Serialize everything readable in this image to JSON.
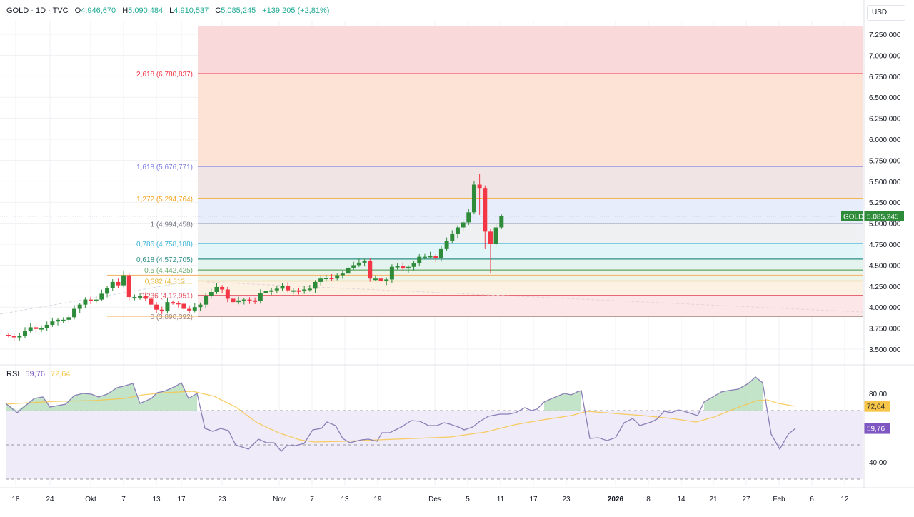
{
  "legend": {
    "symbol": "GOLD · 1D · TVC",
    "open_label": "O",
    "open": "4.946,670",
    "high_label": "H",
    "high": "5.090,484",
    "low_label": "L",
    "low": "4.910,537",
    "close_label": "C",
    "close": "5.085,245",
    "change": "+139,205 (+2,81%)"
  },
  "currency_button": "USD",
  "price_tag": {
    "symbol": "GOLD",
    "value": "5.085,245",
    "color": "#2e8b3a"
  },
  "rsi_legend": {
    "name": "RSI",
    "rsi_value": "59,76",
    "ma_value": "72,64"
  },
  "rsi_tags": {
    "ma": "72,64",
    "rsi": "59,76"
  },
  "colors": {
    "up": "#2e8b3a",
    "down": "#f23645",
    "rsi_line": "#7e57c2",
    "rsi_ma": "#f7c548",
    "fib_2618": "#f23645",
    "fib_1618": "#7b7fe0",
    "fib_1272": "#f5a623",
    "fib_1": "#787b86",
    "fib_0786": "#3cb4d8",
    "fib_0618": "#2f8f87",
    "fib_05": "#6fae73",
    "fib_0382": "#e6b52a",
    "fib_0236": "#e25563",
    "fib_0": "#a08070"
  },
  "chart_data": [
    {
      "type": "candlestick",
      "title": "GOLD · 1D · TVC",
      "ylabel": "USD",
      "ylim": [
        3400000,
        7350000
      ],
      "y_ticks": [
        "7.250,000",
        "7.000,000",
        "6.750,000",
        "6.500,000",
        "6.250,000",
        "6.000,000",
        "5.750,000",
        "5.500,000",
        "5.250,000",
        "5.000,000",
        "4.750,000",
        "4.500,000",
        "4.250,000",
        "4.000,000",
        "3.750,000",
        "3.500,000"
      ],
      "x_ticks": [
        "18",
        "24",
        "Okt",
        "7",
        "13",
        "17",
        "23",
        "Nov",
        "7",
        "13",
        "19",
        "Des",
        "5",
        "11",
        "17",
        "23",
        "2026",
        "8",
        "14",
        "21",
        "27",
        "Feb",
        "6",
        "12"
      ],
      "fibonacci_levels": [
        {
          "ratio": "2,618",
          "price": "6,780,837",
          "label": "2,618 (6,780,837)"
        },
        {
          "ratio": "1,618",
          "price": "5,676,771",
          "label": "1,618 (5,676,771)"
        },
        {
          "ratio": "1,272",
          "price": "5,294,764",
          "label": "1,272 (5,294,764)"
        },
        {
          "ratio": "1",
          "price": "4,994,458",
          "label": "1 (4,994,458)"
        },
        {
          "ratio": "0,786",
          "price": "4,758,188",
          "label": "0,786 (4,758,188)"
        },
        {
          "ratio": "0,618",
          "price": "4,572,705",
          "label": "0,618 (4,572,705)"
        },
        {
          "ratio": "0,5",
          "price": "4,442,425",
          "label": "0,5 (4,442,425)"
        },
        {
          "ratio": "0,382",
          "price": "4,312,...",
          "label": "0,382 (4,312,..."
        },
        {
          "ratio": "0,236",
          "price": "4,1?,951",
          "label": "0,236 (4,1?,951)"
        },
        {
          "ratio": "0",
          "price": "3,890,392",
          "label": "0 (3,890,392)"
        }
      ],
      "last_price": 5085245,
      "candles_approx_close": [
        3660,
        3640,
        3660,
        3720,
        3760,
        3740,
        3750,
        3790,
        3830,
        3850,
        3850,
        3880,
        3980,
        4030,
        4090,
        4070,
        4090,
        4160,
        4230,
        4300,
        4260,
        4380,
        4120,
        4120,
        4130,
        4100,
        4030,
        3970,
        3950,
        4060,
        4050,
        4040,
        3980,
        3960,
        4000,
        4030,
        4130,
        4180,
        4240,
        4210,
        4100,
        4060,
        4080,
        4090,
        4080,
        4070,
        4170,
        4190,
        4200,
        4220,
        4250,
        4200,
        4200,
        4190,
        4210,
        4220,
        4300,
        4340,
        4350,
        4340,
        4380,
        4400,
        4470,
        4500,
        4530,
        4550,
        4340,
        4340,
        4310,
        4330,
        4480,
        4490,
        4460,
        4480,
        4520,
        4600,
        4600,
        4610,
        4580,
        4700,
        4790,
        4870,
        4950,
        5010,
        5130,
        5460,
        5420,
        4900,
        4750,
        4950,
        5085
      ]
    },
    {
      "type": "line",
      "title": "RSI",
      "ylim": [
        20,
        100
      ],
      "y_ticks": [
        "80,00",
        "40,00"
      ],
      "bands": [
        70,
        50,
        30
      ],
      "series": [
        {
          "name": "RSI",
          "last": 59.76
        },
        {
          "name": "RSI-based MA",
          "last": 72.64
        }
      ]
    }
  ]
}
